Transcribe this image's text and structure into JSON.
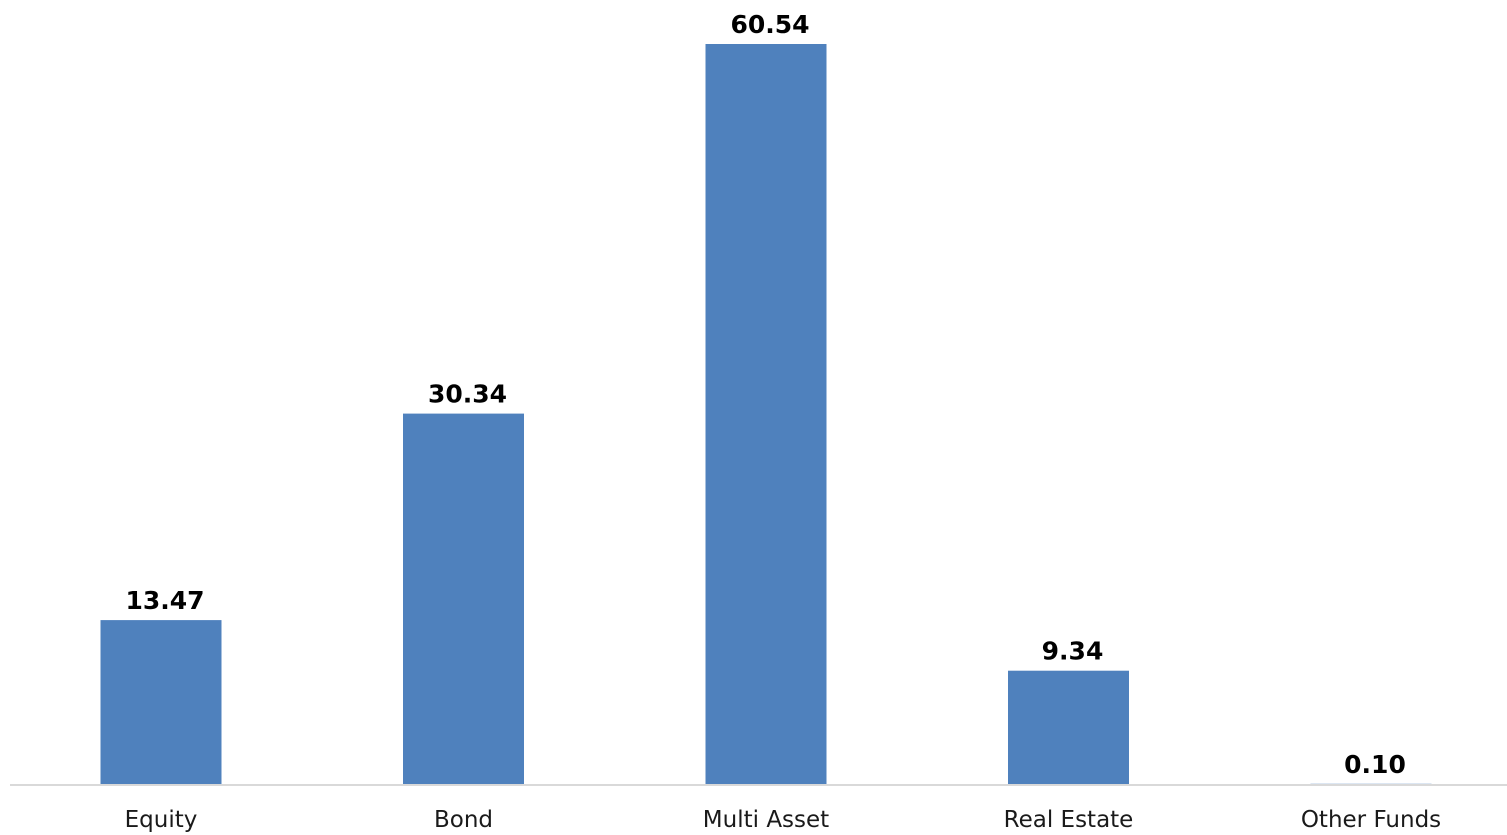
{
  "chart_data": {
    "type": "bar",
    "categories": [
      "Equity",
      "Bond",
      "Multi Asset",
      "Real Estate",
      "Other Funds"
    ],
    "values": [
      13.47,
      30.34,
      60.54,
      9.34,
      0.1
    ],
    "data_labels": [
      "13.47",
      "30.34",
      "60.54",
      "9.34",
      "0.10"
    ],
    "title": "",
    "xlabel": "",
    "ylabel": "",
    "ylim": [
      0,
      60.54
    ],
    "grid": false,
    "legend": "none",
    "colors": {
      "bar": "#4f81bd",
      "axis": "#d9d9d9",
      "label": "#000000",
      "tick": "#1a1a1a"
    }
  }
}
